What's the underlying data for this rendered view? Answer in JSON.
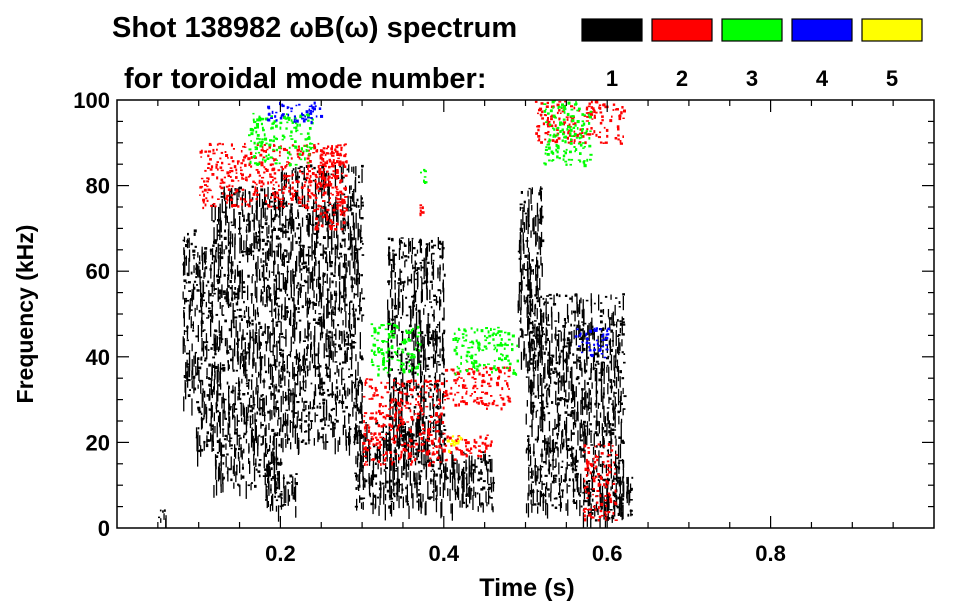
{
  "chart_data": {
    "type": "heatmap",
    "title": "Shot 138982 ωB(ω) spectrum",
    "subtitle": "for toroidal mode number:",
    "xlabel": "Time (s)",
    "ylabel": "Frequency (kHz)",
    "xlim": [
      0.0,
      1.0
    ],
    "ylim": [
      0,
      100
    ],
    "x_ticks": [
      0.2,
      0.4,
      0.6,
      0.8
    ],
    "x_tick_labels": [
      "0.2",
      "0.4",
      "0.6",
      "0.8"
    ],
    "y_ticks": [
      0,
      20,
      40,
      60,
      80,
      100
    ],
    "y_tick_labels": [
      "0",
      "20",
      "40",
      "60",
      "80",
      "100"
    ],
    "x_minor_step": 0.05,
    "y_minor_step": 5,
    "grid": false,
    "legend": [
      {
        "label": "1",
        "color": "#000000"
      },
      {
        "label": "2",
        "color": "#ff0000"
      },
      {
        "label": "3",
        "color": "#00ff00"
      },
      {
        "label": "4",
        "color": "#0000ff"
      },
      {
        "label": "5",
        "color": "#ffff00"
      }
    ],
    "regions": [
      {
        "mode": "1",
        "t": [
          0.05,
          0.06
        ],
        "f": [
          2,
          5
        ]
      },
      {
        "mode": "1",
        "t": [
          0.08,
          0.095
        ],
        "f": [
          30,
          70
        ]
      },
      {
        "mode": "1",
        "t": [
          0.095,
          0.115
        ],
        "f": [
          18,
          66
        ]
      },
      {
        "mode": "1",
        "t": [
          0.115,
          0.2
        ],
        "f": [
          10,
          80
        ]
      },
      {
        "mode": "1",
        "t": [
          0.18,
          0.22
        ],
        "f": [
          5,
          14
        ]
      },
      {
        "mode": "1",
        "t": [
          0.2,
          0.3
        ],
        "f": [
          20,
          85
        ]
      },
      {
        "mode": "1",
        "t": [
          0.29,
          0.38
        ],
        "f": [
          5,
          25
        ]
      },
      {
        "mode": "1",
        "t": [
          0.33,
          0.4
        ],
        "f": [
          18,
          68
        ]
      },
      {
        "mode": "1",
        "t": [
          0.38,
          0.46
        ],
        "f": [
          5,
          18
        ]
      },
      {
        "mode": "1",
        "t": [
          0.49,
          0.52
        ],
        "f": [
          40,
          80
        ]
      },
      {
        "mode": "1",
        "t": [
          0.5,
          0.62
        ],
        "f": [
          5,
          55
        ]
      },
      {
        "mode": "1",
        "t": [
          0.57,
          0.63
        ],
        "f": [
          2,
          12
        ]
      },
      {
        "mode": "2",
        "t": [
          0.1,
          0.28
        ],
        "f": [
          75,
          90
        ]
      },
      {
        "mode": "2",
        "t": [
          0.24,
          0.28
        ],
        "f": [
          70,
          90
        ]
      },
      {
        "mode": "2",
        "t": [
          0.3,
          0.4
        ],
        "f": [
          15,
          35
        ]
      },
      {
        "mode": "2",
        "t": [
          0.4,
          0.48
        ],
        "f": [
          28,
          38
        ]
      },
      {
        "mode": "2",
        "t": [
          0.4,
          0.46
        ],
        "f": [
          16,
          22
        ]
      },
      {
        "mode": "2",
        "t": [
          0.37,
          0.375
        ],
        "f": [
          73,
          76
        ]
      },
      {
        "mode": "2",
        "t": [
          0.51,
          0.62
        ],
        "f": [
          90,
          100
        ]
      },
      {
        "mode": "2",
        "t": [
          0.57,
          0.61
        ],
        "f": [
          2,
          20
        ]
      },
      {
        "mode": "3",
        "t": [
          0.16,
          0.24
        ],
        "f": [
          85,
          97
        ]
      },
      {
        "mode": "3",
        "t": [
          0.31,
          0.37
        ],
        "f": [
          36,
          48
        ]
      },
      {
        "mode": "3",
        "t": [
          0.37,
          0.378
        ],
        "f": [
          81,
          84
        ]
      },
      {
        "mode": "3",
        "t": [
          0.41,
          0.49
        ],
        "f": [
          36,
          47
        ]
      },
      {
        "mode": "3",
        "t": [
          0.52,
          0.58
        ],
        "f": [
          85,
          100
        ]
      },
      {
        "mode": "4",
        "t": [
          0.18,
          0.25
        ],
        "f": [
          95,
          100
        ]
      },
      {
        "mode": "4",
        "t": [
          0.56,
          0.6
        ],
        "f": [
          40,
          47
        ]
      },
      {
        "mode": "5",
        "t": [
          0.4,
          0.42
        ],
        "f": [
          18,
          22
        ]
      }
    ]
  }
}
